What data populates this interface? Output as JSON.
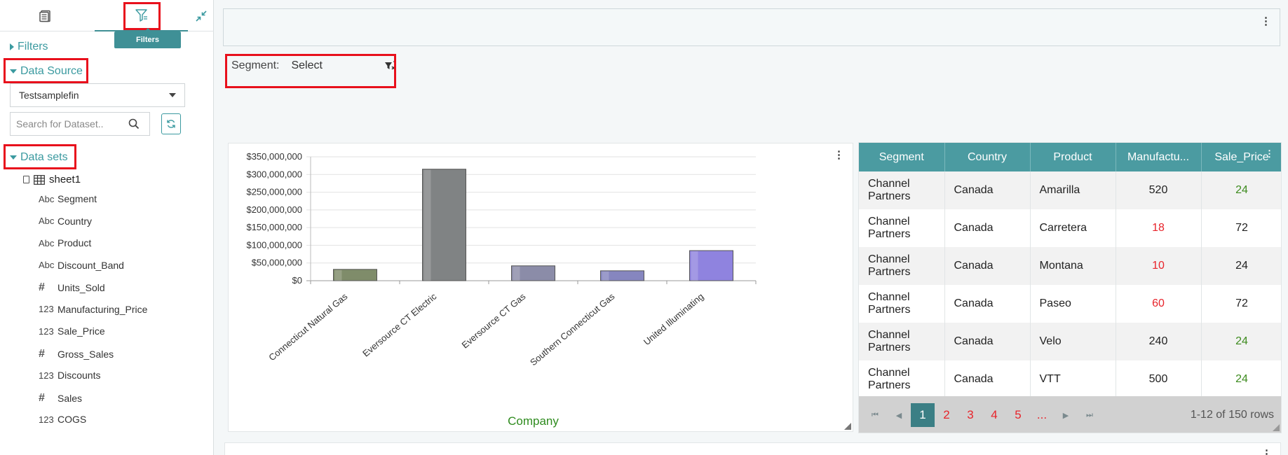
{
  "sidebar": {
    "tooltip": "Filters",
    "filters_label": "Filters",
    "data_source_label": "Data Source",
    "data_source_value": "Testsamplefin",
    "search_placeholder": "Search for Dataset..",
    "datasets_label": "Data sets",
    "tree_root": "sheet1",
    "fields": [
      {
        "type": "Abc",
        "name": "Segment"
      },
      {
        "type": "Abc",
        "name": "Country"
      },
      {
        "type": "Abc",
        "name": "Product"
      },
      {
        "type": "Abc",
        "name": "Discount_Band"
      },
      {
        "type": "#",
        "name": "Units_Sold"
      },
      {
        "type": "123",
        "name": "Manufacturing_Price"
      },
      {
        "type": "123",
        "name": "Sale_Price"
      },
      {
        "type": "#",
        "name": "Gross_Sales"
      },
      {
        "type": "123",
        "name": "Discounts"
      },
      {
        "type": "#",
        "name": "Sales"
      },
      {
        "type": "123",
        "name": "COGS"
      }
    ]
  },
  "segment_filter": {
    "label": "Segment:",
    "value": "Select"
  },
  "chart_data": {
    "type": "bar",
    "categories": [
      "Connecticut Natural Gas",
      "Eversource CT Electric",
      "Eversource CT Gas",
      "Southern Connecticut Gas",
      "United Illuminating"
    ],
    "values": [
      32000000,
      315000000,
      42000000,
      28000000,
      85000000
    ],
    "colors": [
      "#7f8c6a",
      "#808384",
      "#8b8ca8",
      "#8686bf",
      "#8f83df"
    ],
    "xlabel": "Company",
    "ylabel": "",
    "ylim": [
      0,
      350000000
    ],
    "yticks": [
      "$0",
      "$50,000,000",
      "$100,000,000",
      "$150,000,000",
      "$200,000,000",
      "$250,000,000",
      "$300,000,000",
      "$350,000,000"
    ],
    "grid": true
  },
  "table": {
    "columns": [
      "Segment",
      "Country",
      "Product",
      "Manufactu...",
      "Sale_Price"
    ],
    "rows": [
      {
        "segment": "Channel Partners",
        "country": "Canada",
        "product": "Amarilla",
        "mfg": "520",
        "mfg_color": "default",
        "sale": "24",
        "sale_color": "green"
      },
      {
        "segment": "Channel Partners",
        "country": "Canada",
        "product": "Carretera",
        "mfg": "18",
        "mfg_color": "red",
        "sale": "72",
        "sale_color": "default"
      },
      {
        "segment": "Channel Partners",
        "country": "Canada",
        "product": "Montana",
        "mfg": "10",
        "mfg_color": "red",
        "sale": "24",
        "sale_color": "default"
      },
      {
        "segment": "Channel Partners",
        "country": "Canada",
        "product": "Paseo",
        "mfg": "60",
        "mfg_color": "red",
        "sale": "72",
        "sale_color": "default"
      },
      {
        "segment": "Channel Partners",
        "country": "Canada",
        "product": "Velo",
        "mfg": "240",
        "mfg_color": "default",
        "sale": "24",
        "sale_color": "green"
      },
      {
        "segment": "Channel Partners",
        "country": "Canada",
        "product": "VTT",
        "mfg": "500",
        "mfg_color": "default",
        "sale": "24",
        "sale_color": "green"
      }
    ],
    "pager": {
      "pages": [
        "1",
        "2",
        "3",
        "4",
        "5",
        "..."
      ],
      "active_page": "1",
      "info": "1-12 of 150 rows"
    }
  },
  "colors": {
    "accent": "#3b9aa0",
    "header": "#4b9ba1",
    "highlight": "#e8101c",
    "red_value": "#e8242b",
    "green_value": "#3d8b1e",
    "xlabel": "#2e8b1e"
  }
}
